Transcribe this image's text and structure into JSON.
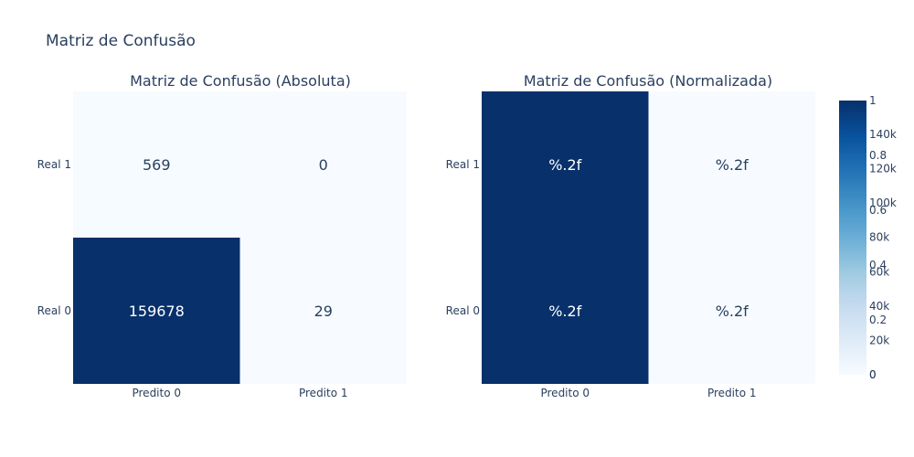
{
  "title": "Matriz de Confusão",
  "chart_data": [
    {
      "type": "heatmap",
      "title": "Matriz de Confusão (Absoluta)",
      "x_categories": [
        "Predito 0",
        "Predito 1"
      ],
      "y_categories": [
        "Real 0",
        "Real 1"
      ],
      "z": [
        [
          159678,
          29
        ],
        [
          569,
          0
        ]
      ],
      "text": [
        [
          "159678",
          "29"
        ],
        [
          "569",
          "0"
        ]
      ],
      "colorscale": "Blues",
      "zrange": [
        0,
        159678
      ],
      "colorbar_ticks": [
        "0",
        "20k",
        "40k",
        "60k",
        "80k",
        "100k",
        "120k",
        "140k"
      ]
    },
    {
      "type": "heatmap",
      "title": "Matriz de Confusão (Normalizada)",
      "x_categories": [
        "Predito 0",
        "Predito 1"
      ],
      "y_categories": [
        "Real 0",
        "Real 1"
      ],
      "z": [
        [
          0.9998,
          0.0002
        ],
        [
          1.0,
          0.0
        ]
      ],
      "text": [
        [
          "%.2f",
          "%.2f"
        ],
        [
          "%.2f",
          "%.2f"
        ]
      ],
      "colorscale": "Blues",
      "zrange": [
        0,
        1
      ],
      "colorbar_ticks": [
        "0",
        "0.2",
        "0.4",
        "0.6",
        "0.8",
        "1"
      ]
    }
  ],
  "colors": {
    "low": "#f7fbff",
    "high": "#08306b",
    "text_dark": "#2a3f5f",
    "text_light": "#ffffff"
  }
}
